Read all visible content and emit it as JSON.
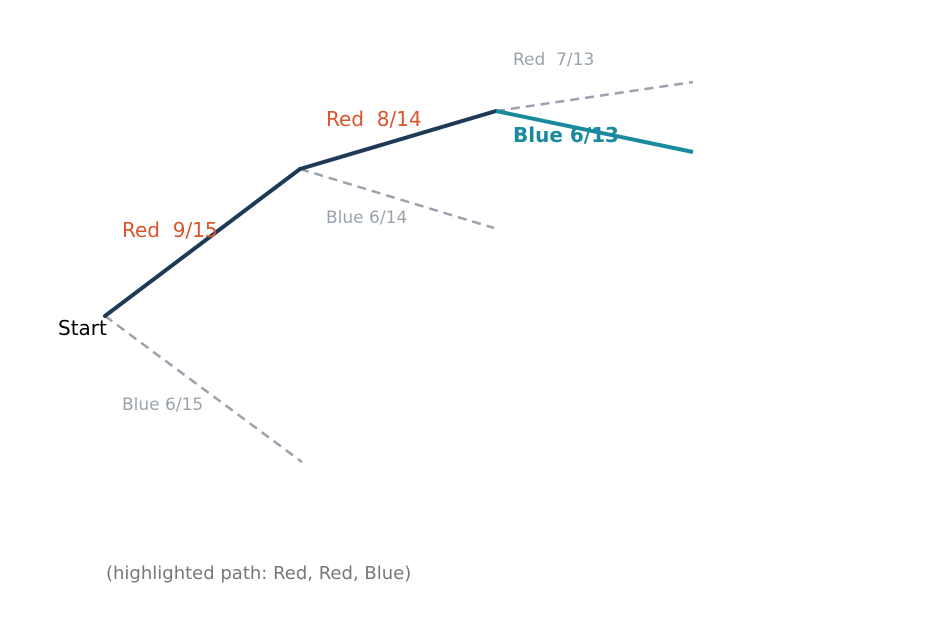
{
  "start_label": "Start",
  "branches": {
    "red_1": "Red  9/15",
    "blue_1": "Blue 6/15",
    "red_2": "Red  8/14",
    "blue_2": "Blue 6/14",
    "red_3": "Red  7/13",
    "blue_3": "Blue 6/13"
  },
  "caption": "(highlighted path: Red, Red, Blue)",
  "colors": {
    "path": "#1e3a56",
    "final_step": "#1a8a9e",
    "red_label": "#d9552b",
    "dim": "#9aa3ad",
    "caption": "#777777"
  }
}
